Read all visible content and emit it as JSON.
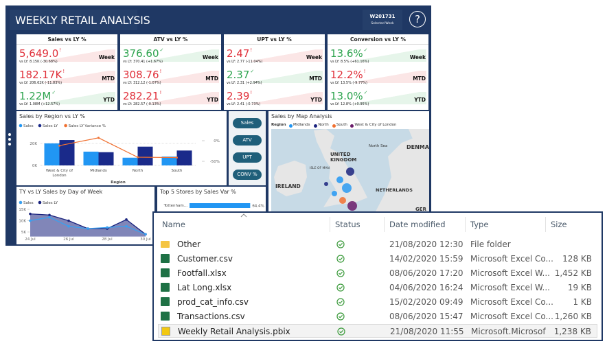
{
  "header": {
    "title": "WEEKLY RETAIL ANALYSIS",
    "week": "W201731",
    "week_caption": "Selected Week",
    "help": "?"
  },
  "kpis": [
    {
      "title": "Sales vs LY %",
      "rows": [
        {
          "value": "5,649.0",
          "compare": "vs LY: 8.15K (-30.68%)",
          "period": "Week"
        },
        {
          "value": "182.17K",
          "compare": "vs LY: 206.62K (-11.83%)",
          "period": "MTD"
        },
        {
          "value": "1.22M",
          "compare": "vs LY: 1.08M (+12.57%)",
          "period": "YTD"
        }
      ]
    },
    {
      "title": "ATV vs LY %",
      "rows": [
        {
          "value": "376.60",
          "compare": "vs LY: 370.41 (+1.67%)",
          "period": "Week"
        },
        {
          "value": "308.76",
          "compare": "vs LY: 312.12 (-1.07%)",
          "period": "MTD"
        },
        {
          "value": "282.21",
          "compare": "vs LY: 282.57 (-0.13%)",
          "period": "YTD"
        }
      ]
    },
    {
      "title": "UPT vs LY %",
      "rows": [
        {
          "value": "2.47",
          "compare": "vs LY: 2.77 (-11.04%)",
          "period": "Week"
        },
        {
          "value": "2.37",
          "compare": "vs LY: 2.31 (+2.94%)",
          "period": "MTD"
        },
        {
          "value": "2.39",
          "compare": "vs LY: 2.41 (-0.73%)",
          "period": "YTD"
        }
      ]
    },
    {
      "title": "Conversion vs LY %",
      "rows": [
        {
          "value": "13.6%",
          "compare": "vs LY: 8.5% (+61.16%)",
          "period": "Week"
        },
        {
          "value": "12.2%",
          "compare": "vs LY: 13.5% (-9.77%)",
          "period": "MTD"
        },
        {
          "value": "13.0%",
          "compare": "vs LY: 12.8% (+0.95%)",
          "period": "YTD"
        }
      ]
    }
  ],
  "buttons": [
    "Sales",
    "ATV",
    "UPT",
    "CONV %"
  ],
  "map": {
    "title": "Sales by Map Analysis",
    "legend_title": "Region",
    "legend": [
      {
        "name": "Midlands",
        "color": "#2196f3"
      },
      {
        "name": "North",
        "color": "#1a237e"
      },
      {
        "name": "South",
        "color": "#f07030"
      },
      {
        "name": "West & City of London",
        "color": "#6a1b6a"
      }
    ],
    "labels": [
      "DENMA",
      "North Sea",
      "UNITED KINGDOM",
      "ISLE OF MAN",
      "IRELAND",
      "NETHERLANDS",
      "GER"
    ]
  },
  "chart_data": [
    {
      "type": "bar",
      "title": "Sales by Region vs LY %",
      "xlabel": "Region",
      "categories": [
        "West & City of London",
        "Midlands",
        "North",
        "South"
      ],
      "series": [
        {
          "name": "Sales",
          "color": "#2196f3",
          "values": [
            20000,
            12500,
            7000,
            8000
          ]
        },
        {
          "name": "Sales LY",
          "color": "#1a2a8a",
          "values": [
            23000,
            12000,
            17000,
            13500
          ]
        },
        {
          "name": "Sales LY Variance %",
          "color": "#f07030",
          "values": [
            -12,
            7,
            -40,
            -41
          ],
          "axis": "y2"
        }
      ],
      "ylim": [
        0,
        28000
      ],
      "yticks": [
        {
          "value": 20000,
          "label": "20K"
        },
        {
          "value": 0,
          "label": "0K"
        }
      ],
      "y2lim": [
        -60,
        15
      ],
      "y2ticks": [
        {
          "value": 0,
          "label": "0%"
        },
        {
          "value": -50,
          "label": "-50%"
        }
      ],
      "grid": true
    },
    {
      "type": "area",
      "title": "TY vs LY Sales by Day of Week",
      "categories": [
        "24 Jul",
        null,
        "26 Jul",
        null,
        "28 Jul",
        null,
        "30 Jul"
      ],
      "series": [
        {
          "name": "Sales",
          "color": "#3aa0f0",
          "values": [
            10000,
            11500,
            7500,
            6500,
            7000,
            7500,
            4000
          ]
        },
        {
          "name": "Sales LY",
          "color": "#1a237e",
          "values": [
            13000,
            12500,
            10000,
            6500,
            6500,
            10500,
            4000
          ],
          "fill": true
        }
      ],
      "ylim": [
        3000,
        16000
      ],
      "yticks": [
        {
          "value": 15000,
          "label": "15K"
        },
        {
          "value": 10000,
          "label": "10K"
        },
        {
          "value": 5000,
          "label": "5K"
        }
      ]
    },
    {
      "type": "hbar",
      "title": "Top 5 Stores by Sales Var %",
      "categories": [
        "Tottenham..."
      ],
      "values": [
        64.4
      ],
      "value_labels": [
        "64.4%"
      ],
      "color": "#2196f3",
      "xlim": [
        0,
        70
      ]
    }
  ],
  "explorer": {
    "columns": [
      "Name",
      "Status",
      "Date modified",
      "Type",
      "Size"
    ],
    "rows": [
      {
        "name": "Other",
        "date": "21/08/2020 12:30",
        "type": "File folder"
      },
      {
        "name": "Customer.csv",
        "date": "14/02/2020 15:59",
        "type": "Microsoft Excel Co...",
        "size": "128 KB"
      },
      {
        "name": "Footfall.xlsx",
        "date": "08/06/2020 17:20",
        "type": "Microsoft Excel W...",
        "size": "1,452 KB"
      },
      {
        "name": "Lat Long.xlsx",
        "date": "04/06/2020 16:24",
        "type": "Microsoft Excel W...",
        "size": "19 KB"
      },
      {
        "name": "prod_cat_info.csv",
        "date": "15/02/2020 09:49",
        "type": "Microsoft Excel Co...",
        "size": "1 KB"
      },
      {
        "name": "Transactions.csv",
        "date": "08/06/2020 15:47",
        "type": "Microsoft Excel Co...",
        "size": "1,260 KB"
      },
      {
        "name": "Weekly Retail Analysis.pbix",
        "date": "21/08/2020 11:55",
        "type": "Microsoft.Microsof",
        "size": "1,238 KB"
      }
    ]
  }
}
